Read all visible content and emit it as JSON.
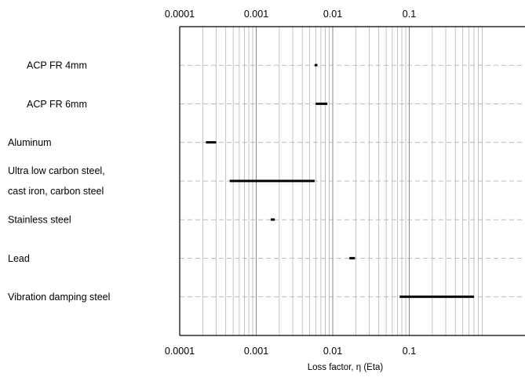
{
  "chart_data": {
    "type": "range-bar",
    "x_scale": "log",
    "xlim": [
      0.0001,
      1
    ],
    "xlabel": "Loss factor, η (Eta)",
    "x_ticks": [
      {
        "value": 0.0001,
        "label": "0.0001"
      },
      {
        "value": 0.001,
        "label": "0.001"
      },
      {
        "value": 0.01,
        "label": "0.01"
      },
      {
        "value": 0.1,
        "label": "0.1"
      }
    ],
    "grid": {
      "vertical": "solid",
      "horizontal": "dashed"
    },
    "categories": [
      {
        "label": [
          "ACP FR  4mm"
        ],
        "range": [
          0.0058,
          0.0063
        ]
      },
      {
        "label": [
          "ACP FR  6mm"
        ],
        "range": [
          0.006,
          0.0085
        ]
      },
      {
        "label": [
          "Aluminum"
        ],
        "range": [
          0.00022,
          0.0003
        ]
      },
      {
        "label": [
          "Ultra low carbon steel,",
          "cast iron, carbon steel"
        ],
        "range": [
          0.00045,
          0.0058
        ]
      },
      {
        "label": [
          "Stainless steel"
        ],
        "range": [
          0.00155,
          0.00175
        ]
      },
      {
        "label": [
          "Lead"
        ],
        "range": [
          0.0165,
          0.0195
        ]
      },
      {
        "label": [
          "Vibration damping steel"
        ],
        "range": [
          0.075,
          0.7
        ]
      }
    ]
  }
}
